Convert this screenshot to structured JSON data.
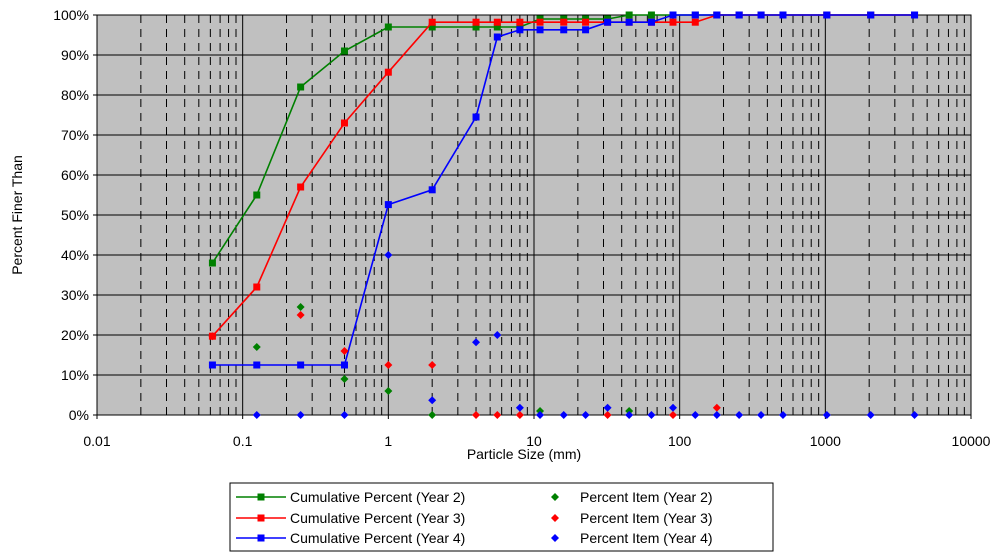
{
  "chart_data": {
    "type": "scatter",
    "xlabel": "Particle Size (mm)",
    "ylabel": "Percent Finer Than",
    "x_scale": "log",
    "xlim": [
      0.01,
      10000
    ],
    "ylim": [
      0,
      100
    ],
    "x_ticks": [
      0.01,
      0.1,
      1,
      10,
      100,
      1000,
      10000
    ],
    "x_tick_labels": [
      "0.01",
      "0.1",
      "1",
      "10",
      "100",
      "1000",
      "10000"
    ],
    "y_ticks": [
      0,
      10,
      20,
      30,
      40,
      50,
      60,
      70,
      80,
      90,
      100
    ],
    "y_tick_labels": [
      "0%",
      "10%",
      "20%",
      "30%",
      "40%",
      "50%",
      "60%",
      "70%",
      "80%",
      "90%",
      "100%"
    ],
    "grid": "major and minor vertical, major horizontal",
    "plot_background": "#c0c0c0",
    "legend_position": "bottom",
    "series": [
      {
        "name": "Cumulative Percent (Year 2)",
        "kind": "line",
        "marker": "square",
        "color": "#008000",
        "x": [
          0.062,
          0.125,
          0.25,
          0.5,
          1,
          2,
          4,
          5.6,
          8,
          11,
          16,
          22.6,
          32,
          45,
          64,
          90,
          128,
          180,
          256,
          362,
          512,
          1024,
          2048,
          4096
        ],
        "y": [
          38,
          55,
          82,
          91,
          97,
          97,
          97,
          97,
          97,
          99,
          99,
          99,
          99,
          100,
          100,
          100,
          100,
          100,
          100,
          100,
          100,
          100,
          100,
          100
        ]
      },
      {
        "name": "Cumulative Percent (Year 3)",
        "kind": "line",
        "marker": "square",
        "color": "#ff0000",
        "x": [
          0.062,
          0.125,
          0.25,
          0.5,
          1,
          2,
          4,
          5.6,
          8,
          11,
          16,
          22.6,
          32,
          45,
          64,
          90,
          128,
          180,
          256,
          362,
          512,
          1024,
          2048,
          4096
        ],
        "y": [
          19.7,
          32,
          57,
          73,
          85.7,
          98.2,
          98.2,
          98.2,
          98.2,
          98.2,
          98.2,
          98.2,
          98.2,
          98.2,
          98.2,
          98.2,
          98.2,
          100,
          100,
          100,
          100,
          100,
          100,
          100
        ]
      },
      {
        "name": "Cumulative Percent (Year 4)",
        "kind": "line",
        "marker": "square",
        "color": "#0000ff",
        "x": [
          0.062,
          0.125,
          0.25,
          0.5,
          1,
          2,
          4,
          5.6,
          8,
          11,
          16,
          22.6,
          32,
          45,
          64,
          90,
          128,
          180,
          256,
          362,
          512,
          1024,
          2048,
          4096
        ],
        "y": [
          12.5,
          12.5,
          12.5,
          12.5,
          52.6,
          56.3,
          74.5,
          94.5,
          96.3,
          96.3,
          96.3,
          96.3,
          98.2,
          98.2,
          98.2,
          100,
          100,
          100,
          100,
          100,
          100,
          100,
          100,
          100
        ]
      },
      {
        "name": "Percent Item (Year 2)",
        "kind": "points",
        "marker": "diamond",
        "color": "#008000",
        "x": [
          0.125,
          0.25,
          0.5,
          1,
          2,
          11,
          45
        ],
        "y": [
          17,
          27,
          9,
          6,
          0,
          1,
          1
        ]
      },
      {
        "name": "Percent Item (Year 3)",
        "kind": "points",
        "marker": "diamond",
        "color": "#ff0000",
        "x": [
          0.062,
          0.25,
          0.5,
          1,
          2,
          4,
          5.6,
          8,
          32,
          90,
          180
        ],
        "y": [
          19.7,
          25,
          16,
          12.5,
          12.5,
          0,
          0,
          0,
          0,
          0,
          1.8
        ]
      },
      {
        "name": "Percent Item (Year 4)",
        "kind": "points",
        "marker": "diamond",
        "color": "#0000ff",
        "x": [
          0.125,
          0.25,
          0.5,
          1,
          2,
          4,
          5.6,
          8,
          11,
          16,
          22.6,
          32,
          45,
          64,
          90,
          128,
          180,
          256,
          362,
          512,
          1024,
          2048,
          4096
        ],
        "y": [
          0,
          0,
          0,
          40,
          3.7,
          18.2,
          20,
          1.8,
          0,
          0,
          0,
          1.8,
          0,
          0,
          1.8,
          0,
          0,
          0,
          0,
          0,
          0,
          0,
          0
        ]
      }
    ]
  }
}
